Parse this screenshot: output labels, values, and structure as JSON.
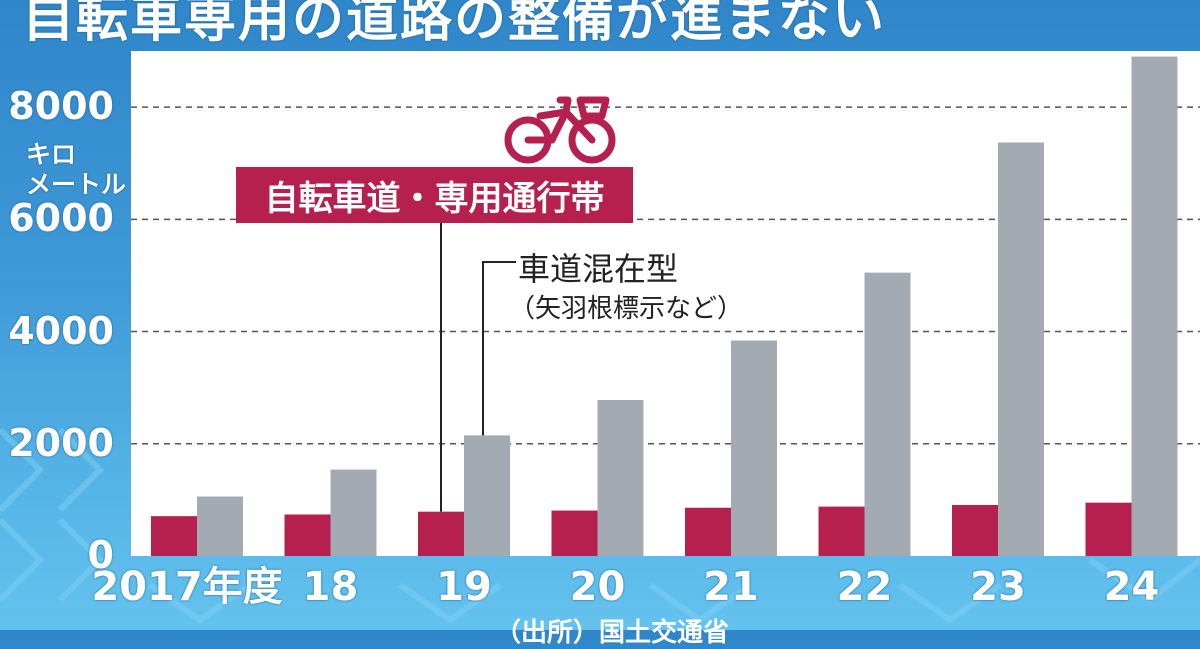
{
  "title": "自転車専用の道路の整備が進まない",
  "colors": {
    "series_dedicated": "#b6204f",
    "series_mixed": "#a3aab2",
    "background": "#3f9ad8",
    "plot_background": "#ffffff"
  },
  "icons": {
    "legend_icon": "bicycle-icon"
  },
  "chart_data": {
    "type": "bar",
    "title": "自転車専用の道路の整備が進まない",
    "ylabel": "キロメートル",
    "xlabel": "",
    "categories": [
      "2017年度",
      "18",
      "19",
      "20",
      "21",
      "22",
      "23",
      "24"
    ],
    "ylim": [
      0,
      8000
    ],
    "yticks": [
      "0",
      "2000",
      "4000",
      "6000",
      "8000"
    ],
    "grid": "horizontal dashed",
    "series": [
      {
        "name": "自転車道・専用通行帯",
        "values": [
          710,
          740,
          790,
          810,
          860,
          880,
          910,
          950
        ]
      },
      {
        "name": "車道混在型",
        "name_note": "（矢羽根標示など）",
        "values": [
          1060,
          1540,
          2150,
          2780,
          3840,
          5050,
          7370,
          8900
        ]
      }
    ],
    "legend_placement": "top-left"
  },
  "source_text": "（出所）国土交通省"
}
